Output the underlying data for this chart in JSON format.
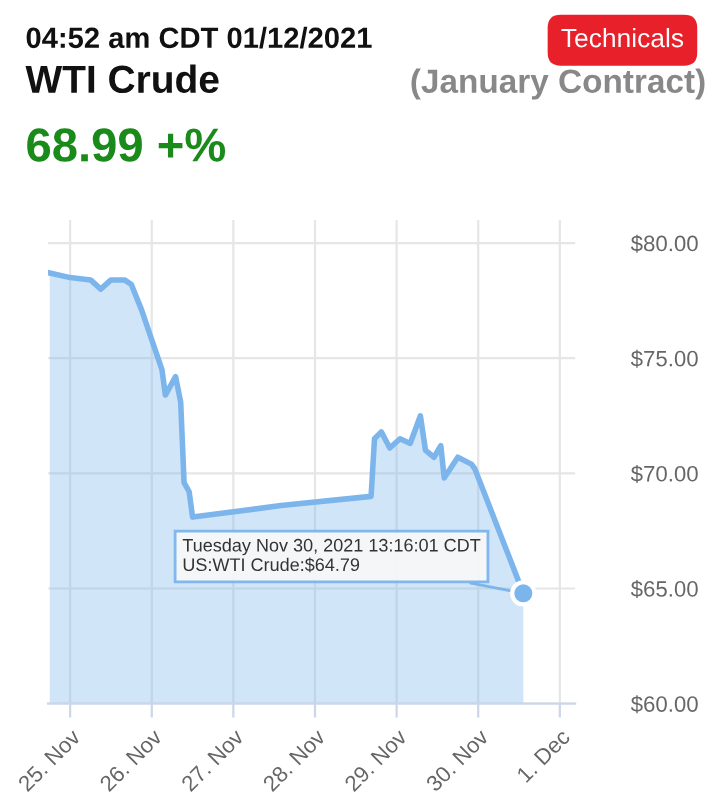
{
  "chart_data": {
    "type": "area",
    "title": "WTI Crude",
    "subtitle": "(January Contract)",
    "annotations": [
      "04:52 am CDT 01/12/2021",
      "68.99 +%",
      "Technicals",
      {
        "text": "Tuesday Nov 30, 2021 13:16:01 CDT\nUS:WTI Crude:$64.79",
        "x": "2021-11-30T13:16",
        "y": 64.79
      }
    ],
    "x": [
      "2021-11-24T18:00",
      "2021-11-25T00:00",
      "2021-11-25T06:00",
      "2021-11-25T09:00",
      "2021-11-25T12:00",
      "2021-11-25T16:00",
      "2021-11-25T18:00",
      "2021-11-25T21:00",
      "2021-11-26T00:00",
      "2021-11-26T03:00",
      "2021-11-26T04:00",
      "2021-11-26T05:30",
      "2021-11-26T07:00",
      "2021-11-26T08:30",
      "2021-11-26T09:30",
      "2021-11-26T11:00",
      "2021-11-26T12:00",
      "2021-11-27T14:00",
      "2021-11-28T16:30",
      "2021-11-28T17:30",
      "2021-11-28T19:30",
      "2021-11-28T22:00",
      "2021-11-29T01:00",
      "2021-11-29T04:00",
      "2021-11-29T07:00",
      "2021-11-29T08:30",
      "2021-11-29T11:00",
      "2021-11-29T13:00",
      "2021-11-29T14:00",
      "2021-11-29T18:00",
      "2021-11-29T22:00",
      "2021-11-29T23:00",
      "2021-11-30T13:16"
    ],
    "series": [
      {
        "color": "#7cb5ec",
        "values": [
          78.7,
          78.5,
          78.4,
          78.0,
          78.4,
          78.4,
          78.2,
          77.1,
          75.8,
          74.5,
          73.4,
          73.8,
          74.2,
          73.1,
          69.6,
          69.2,
          68.1,
          68.6,
          69.0,
          71.5,
          71.8,
          71.1,
          71.5,
          71.3,
          72.5,
          71.0,
          70.7,
          71.2,
          69.8,
          70.7,
          70.4,
          70.2,
          64.79
        ]
      }
    ],
    "xlim": [
      "2021-11-24T17:30",
      "2021-12-01T04:30"
    ],
    "xticks": [
      {
        "value": "2021-11-25",
        "label": "25. Nov"
      },
      {
        "value": "2021-11-26",
        "label": "26. Nov"
      },
      {
        "value": "2021-11-27",
        "label": "27. Nov"
      },
      {
        "value": "2021-11-28",
        "label": "28. Nov"
      },
      {
        "value": "2021-11-29",
        "label": "29. Nov"
      },
      {
        "value": "2021-11-30",
        "label": "30. Nov"
      },
      {
        "value": "2021-12-01",
        "label": "1. Dec"
      }
    ],
    "ylim": [
      60,
      81
    ],
    "yticks": [
      {
        "value": 60,
        "label": "$60.00"
      },
      {
        "value": 65,
        "label": "$65.00"
      },
      {
        "value": 70,
        "label": "$70.00"
      },
      {
        "value": 75,
        "label": "$75.00"
      },
      {
        "value": 80,
        "label": "$80.00"
      }
    ],
    "grid": true,
    "legend": false
  }
}
